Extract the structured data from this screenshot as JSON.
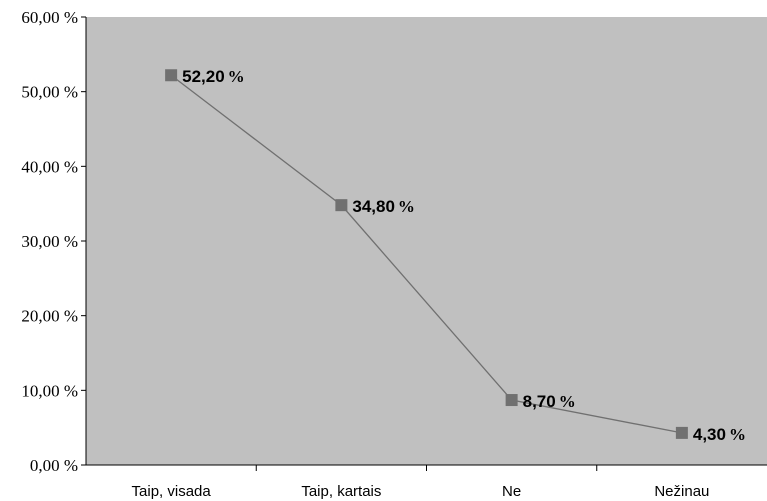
{
  "chart_data": {
    "type": "line",
    "categories": [
      "Taip, visada",
      "Taip, kartais",
      "Ne",
      "Nežinau"
    ],
    "series": [
      {
        "values": [
          52.2,
          34.8,
          8.7,
          4.3
        ],
        "labels": [
          "52,20",
          "34,80",
          "8,70",
          "4,30"
        ],
        "label_suffix": "%",
        "color": "#707070",
        "marker": "square"
      }
    ],
    "yticks": [
      "0,00 %",
      "10,00 %",
      "20,00 %",
      "30,00 %",
      "40,00 %",
      "50,00 %",
      "60,00 %"
    ],
    "ylim": [
      0,
      60
    ],
    "plot_background": "#c0c0c0",
    "grid": false
  }
}
